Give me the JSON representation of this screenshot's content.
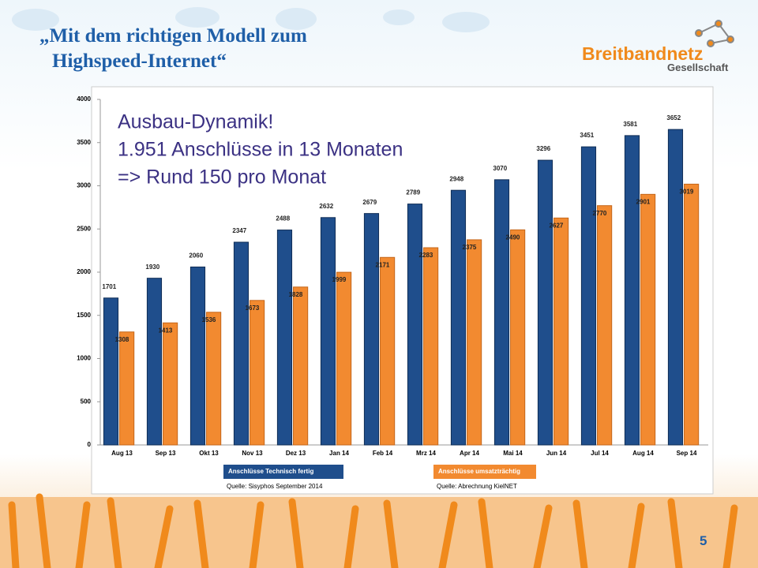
{
  "slide_title": [
    "„Mit dem richtigen Modell zum",
    "Highspeed-Internet“"
  ],
  "logo": {
    "name": "Breitbandnetz",
    "subtitle": "Gesellschaft"
  },
  "page_number": "5",
  "chart_data": {
    "type": "bar",
    "annotation": [
      "Ausbau-Dynamik!",
      "1.951 Anschlüsse in 13 Monaten",
      "=> Rund 150 pro Monat"
    ],
    "categories": [
      "Aug 13",
      "Sep 13",
      "Okt 13",
      "Nov 13",
      "Dez 13",
      "Jan 14",
      "Feb 14",
      "Mrz 14",
      "Apr 14",
      "Mai 14",
      "Jun 14",
      "Jul 14",
      "Aug 14",
      "Sep 14"
    ],
    "series": [
      {
        "name": "Anschlüsse Technisch fertig",
        "color": "#1f4e8c",
        "source": "Quelle: Sisyphos September 2014",
        "values": [
          1701,
          1930,
          2060,
          2347,
          2488,
          2632,
          2679,
          2789,
          2948,
          3070,
          3296,
          3451,
          3581,
          3652
        ]
      },
      {
        "name": "Anschlüsse umsatzträchtig",
        "color": "#f28a30",
        "source": "Quelle: Abrechnung KielNET",
        "values": [
          1308,
          1413,
          1536,
          1673,
          1828,
          1999,
          2171,
          2283,
          2375,
          2490,
          2627,
          2770,
          2901,
          3019
        ]
      }
    ],
    "ylim": [
      0,
      4000
    ],
    "yticks": [
      0,
      500,
      1000,
      1500,
      2000,
      2500,
      3000,
      3500,
      4000
    ]
  }
}
